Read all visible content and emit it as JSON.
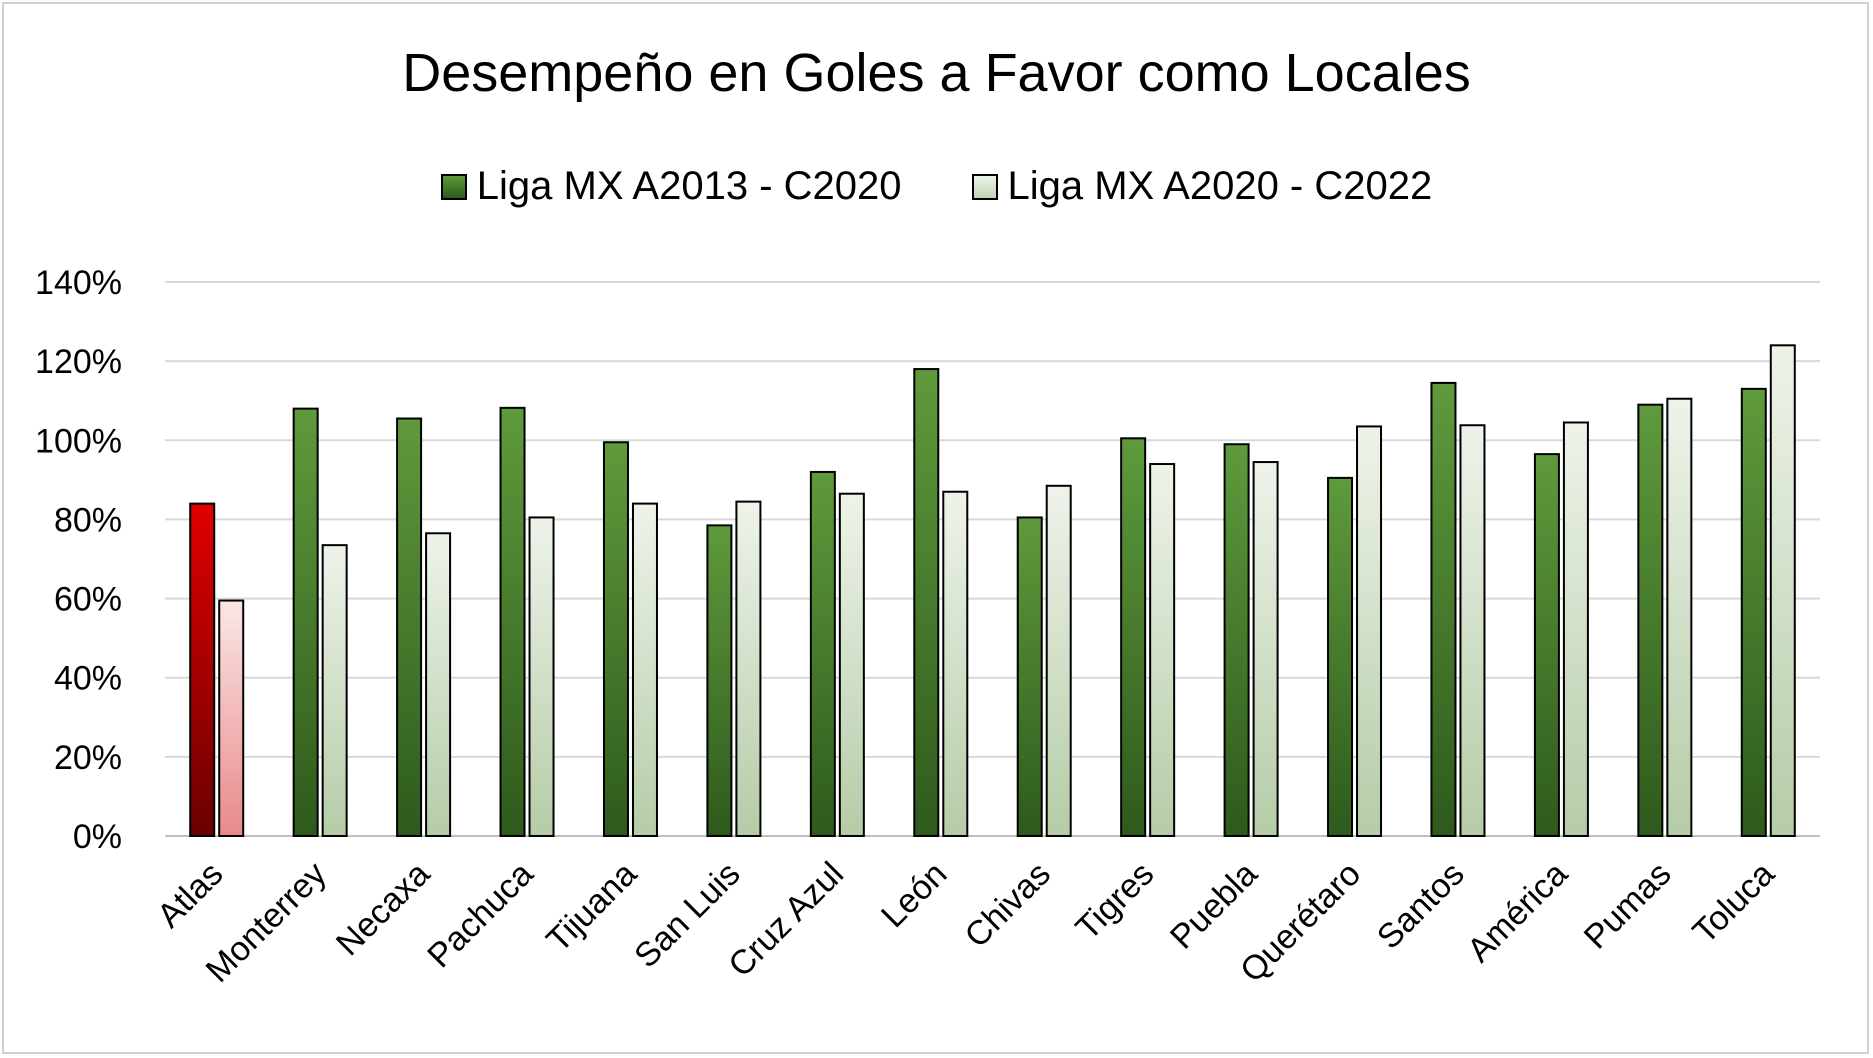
{
  "chart_data": {
    "type": "bar",
    "title": "Desempeño en Goles a Favor como Locales",
    "xlabel": "",
    "ylabel": "",
    "ylim": [
      0,
      1.4
    ],
    "y_ticks": [
      "0%",
      "20%",
      "40%",
      "60%",
      "80%",
      "100%",
      "120%",
      "140%"
    ],
    "grid": true,
    "legend_position": "top",
    "categories": [
      "Atlas",
      "Monterrey",
      "Necaxa",
      "Pachuca",
      "Tijuana",
      "San Luis",
      "Cruz Azul",
      "León",
      "Chivas",
      "Tigres",
      "Puebla",
      "Querétaro",
      "Santos",
      "América",
      "Pumas",
      "Toluca"
    ],
    "highlight_category": "Atlas",
    "series": [
      {
        "name": "Liga MX A2013 - C2020",
        "color": "#4a7c2c",
        "highlight_color": "#c00000",
        "values": [
          0.84,
          1.08,
          1.055,
          1.082,
          0.995,
          0.785,
          0.92,
          1.18,
          0.805,
          1.005,
          0.99,
          0.905,
          1.145,
          0.965,
          1.09,
          1.13
        ]
      },
      {
        "name": "Liga MX A2020 - C2022",
        "color": "#dfe9d7",
        "highlight_color": "#f4c6c6",
        "values": [
          0.595,
          0.735,
          0.765,
          0.805,
          0.84,
          0.845,
          0.865,
          0.87,
          0.885,
          0.94,
          0.945,
          1.035,
          1.038,
          1.045,
          1.105,
          1.24
        ]
      }
    ]
  }
}
